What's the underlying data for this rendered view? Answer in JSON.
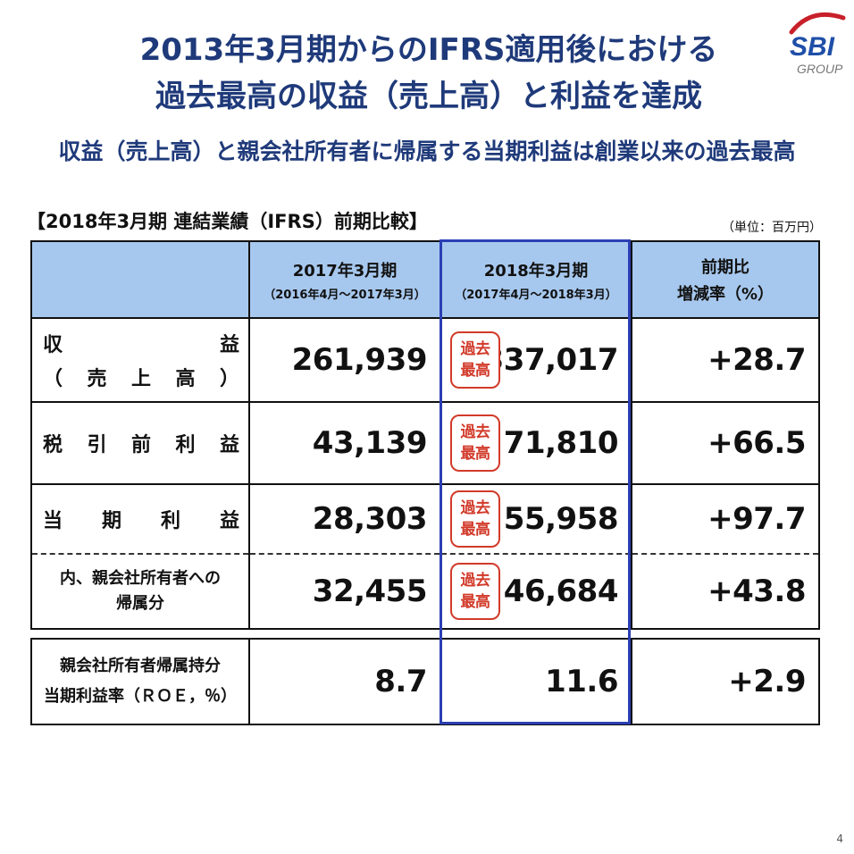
{
  "title_line1": "2013年3月期からのIFRS適用後における",
  "title_line2": "過去最高の収益（売上高）と利益を達成",
  "subtitle": "収益（売上高）と親会社所有者に帰属する当期利益は創業以来の過去最高",
  "logo": {
    "brand": "SBI",
    "group": "GROUP"
  },
  "table_heading": "【2018年3月期 連結業績（IFRS）前期比較】",
  "unit": "（単位：百万円）",
  "columns": {
    "prev": {
      "label": "2017年3月期",
      "period": "（2016年4月～2017年3月）"
    },
    "curr": {
      "label": "2018年3月期",
      "period": "（2017年4月～2018年3月）"
    },
    "change": {
      "label1": "前期比",
      "label2": "増減率（%）"
    }
  },
  "stamp": {
    "line1": "過去",
    "line2": "最高"
  },
  "rows": [
    {
      "label_chars_top": [
        "収",
        "益"
      ],
      "label_chars_bottom": [
        "（",
        "売",
        "上",
        "高",
        "）"
      ],
      "prev": "261,939",
      "curr": "337,017",
      "change": "+28.7"
    },
    {
      "label_chars": [
        "税",
        "引",
        "前",
        "利",
        "益"
      ],
      "prev": "43,139",
      "curr": "71,810",
      "change": "+66.5"
    },
    {
      "label_chars": [
        "当",
        "期",
        "利",
        "益"
      ],
      "prev": "28,303",
      "curr": "55,958",
      "change": "+97.7"
    },
    {
      "label_line1": "内、親会社所有者への",
      "label_line2": "帰属分",
      "prev": "32,455",
      "curr": "46,684",
      "change": "+43.8"
    }
  ],
  "roe": {
    "label_line1": "親会社所有者帰属持分",
    "label_line2": "当期利益率（ＲＯＥ，％）",
    "prev": "8.7",
    "curr": "11.6",
    "change": "+2.9"
  },
  "page_number": "4",
  "colors": {
    "title": "#1f3a7a",
    "header_fill": "#a7c8ee",
    "highlight_border": "#2b3fb3",
    "stamp": "#d23a2a",
    "logo_red": "#c8202a",
    "logo_blue": "#1f4fa8"
  }
}
